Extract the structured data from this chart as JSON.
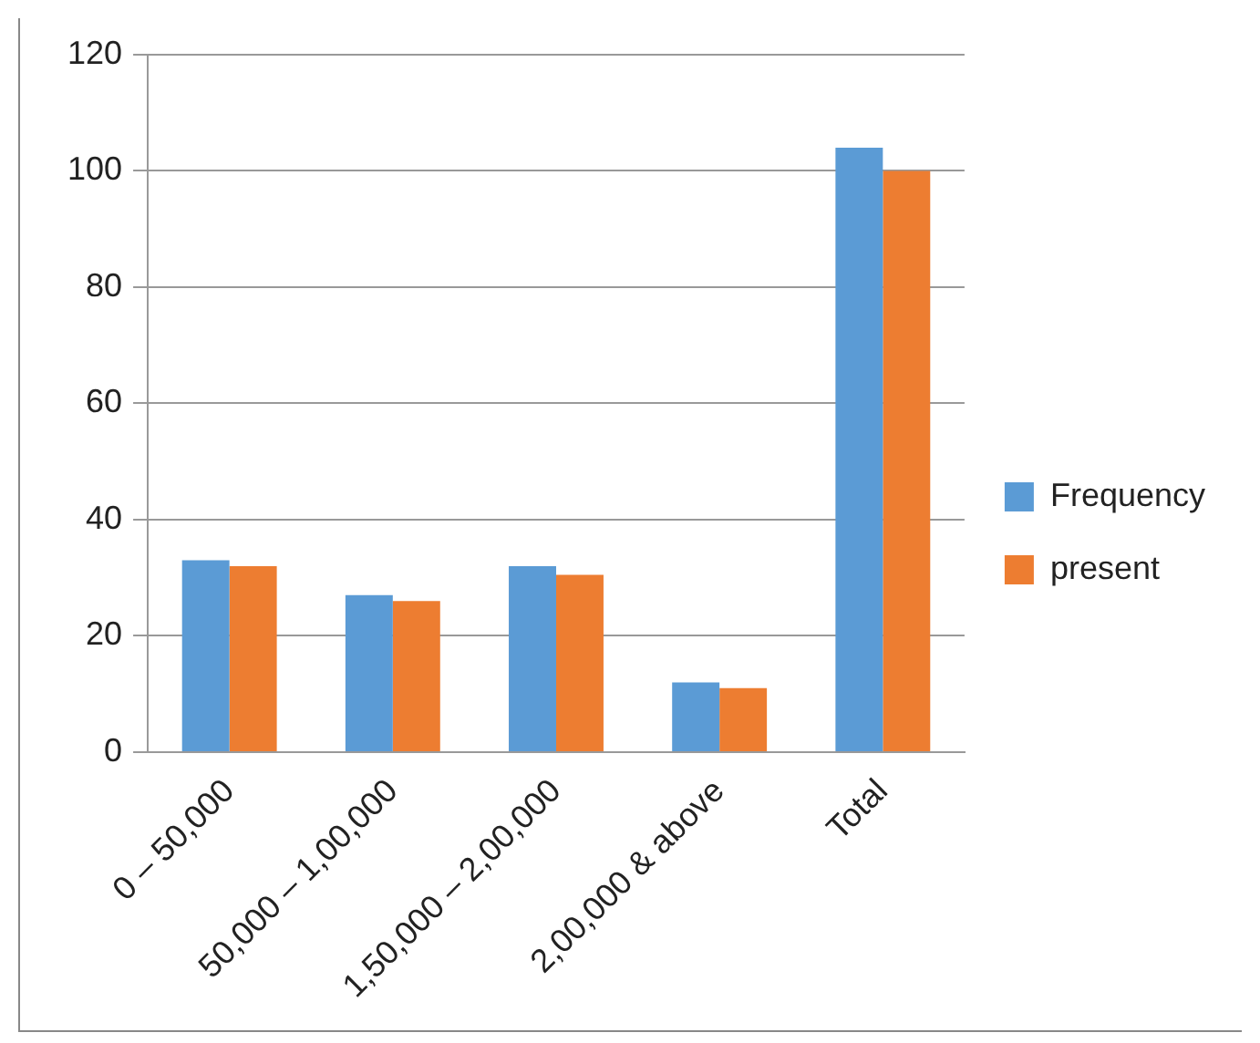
{
  "chart_data": {
    "type": "bar",
    "categories": [
      "0 – 50,000",
      "50,000 – 1,00,000",
      "1,50,000 – 2,00,000",
      "2,00,000 & above",
      "Total"
    ],
    "series": [
      {
        "name": "Frequency",
        "color": "#5b9bd5",
        "values": [
          33,
          27,
          32,
          12,
          104
        ]
      },
      {
        "name": "present",
        "color": "#ed7d31",
        "values": [
          32,
          26,
          30.5,
          11,
          100
        ]
      }
    ],
    "ylim": [
      0,
      120
    ],
    "yticks": [
      0,
      20,
      40,
      60,
      80,
      100,
      120
    ],
    "grid": "y",
    "legend": "right"
  }
}
